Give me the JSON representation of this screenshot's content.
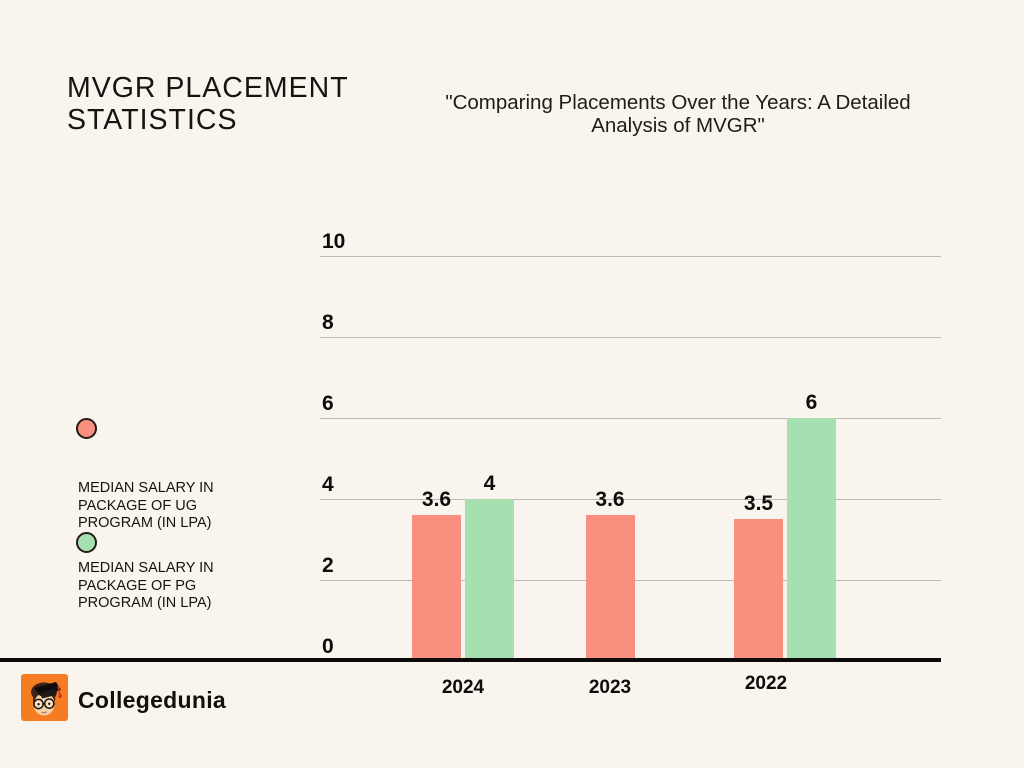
{
  "page": {
    "title": "MVGR PLACEMENT STATISTICS",
    "subtitle": "\"Comparing Placements Over the Years: A Detailed Analysis of MVGR\""
  },
  "legend": {
    "items": [
      {
        "icon": "circle-swatch",
        "color": "#F9907F",
        "label": "MEDIAN SALARY IN PACKAGE OF UG PROGRAM (IN LPA)"
      },
      {
        "icon": "circle-swatch",
        "color": "#A6DFB0",
        "label": "MEDIAN SALARY IN PACKAGE OF PG PROGRAM (IN LPA)"
      }
    ]
  },
  "chart_data": {
    "type": "bar",
    "title": "MVGR PLACEMENT STATISTICS",
    "categories": [
      "2024",
      "2023",
      "2022"
    ],
    "series": [
      {
        "name": "MEDIAN SALARY IN PACKAGE OF UG PROGRAM (IN LPA)",
        "color": "#F9907F",
        "values": [
          3.6,
          3.6,
          3.5
        ]
      },
      {
        "name": "MEDIAN SALARY IN PACKAGE OF PG PROGRAM (IN LPA)",
        "color": "#A6DFB0",
        "values": [
          4,
          null,
          6
        ]
      }
    ],
    "xlabel": "",
    "ylabel": "",
    "ylim": [
      0,
      10
    ],
    "yticks": [
      0,
      2,
      4,
      6,
      8,
      10
    ],
    "grid": true,
    "legend_position": "left",
    "bar_value_labels": true
  },
  "footer": {
    "brand": "Collegedunia",
    "logo": "collegedunia-mascot-icon",
    "brand_color": "#F57C21"
  }
}
